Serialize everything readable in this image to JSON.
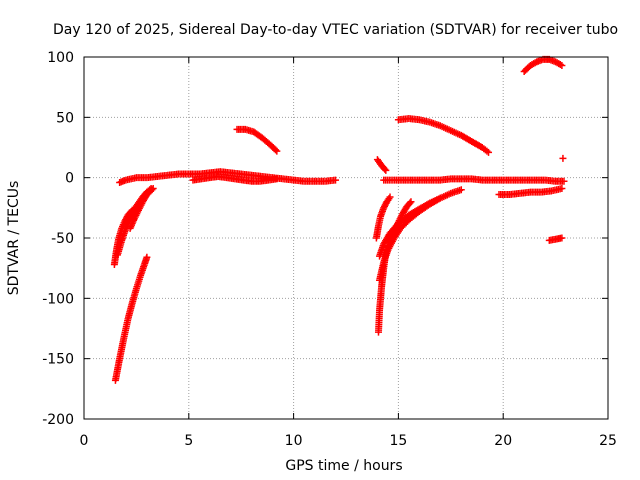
{
  "chart_data": {
    "type": "scatter",
    "title": "Day 120 of 2025, Sidereal Day-to-day VTEC variation (SDTVAR) for receiver tubo",
    "xlabel": "GPS time / hours",
    "ylabel": "SDTVAR / TECUs",
    "xlim": [
      0,
      25
    ],
    "ylim": [
      -200,
      100
    ],
    "x_ticks": [
      "0",
      "5",
      "10",
      "15",
      "20",
      "25"
    ],
    "y_ticks": [
      "100",
      "50",
      "0",
      "-50",
      "-100",
      "-150",
      "-200"
    ],
    "grid": true,
    "marker": "+",
    "color": "#ff0000",
    "series": [
      {
        "values": [
          [
            1.5,
            -168
          ],
          [
            1.7,
            -150
          ],
          [
            1.9,
            -133
          ],
          [
            2.1,
            -117
          ],
          [
            2.3,
            -104
          ],
          [
            2.5,
            -92
          ],
          [
            2.7,
            -81
          ],
          [
            2.9,
            -71
          ],
          [
            3.0,
            -66
          ]
        ]
      },
      {
        "values": [
          [
            1.45,
            -72
          ],
          [
            1.55,
            -60
          ],
          [
            1.65,
            -51
          ],
          [
            1.8,
            -42
          ],
          [
            1.95,
            -36
          ],
          [
            2.1,
            -31
          ],
          [
            2.3,
            -27
          ]
        ]
      },
      {
        "values": [
          [
            1.6,
            -64
          ],
          [
            1.8,
            -52
          ],
          [
            2.0,
            -42
          ],
          [
            2.2,
            -34
          ],
          [
            2.4,
            -28
          ],
          [
            2.6,
            -24
          ]
        ]
      },
      {
        "values": [
          [
            2.0,
            -38
          ],
          [
            2.2,
            -32
          ],
          [
            2.4,
            -26
          ],
          [
            2.6,
            -21
          ],
          [
            2.8,
            -16
          ],
          [
            3.0,
            -12
          ],
          [
            3.2,
            -9
          ]
        ]
      },
      {
        "values": [
          [
            2.2,
            -42
          ],
          [
            2.4,
            -34
          ],
          [
            2.6,
            -27
          ],
          [
            2.8,
            -20
          ],
          [
            3.0,
            -14
          ],
          [
            3.3,
            -9
          ]
        ]
      },
      {
        "values": [
          [
            1.7,
            -4
          ],
          [
            2.0,
            -2
          ],
          [
            2.5,
            0
          ],
          [
            3.0,
            0
          ],
          [
            3.5,
            1
          ],
          [
            4.0,
            2
          ],
          [
            4.5,
            3
          ],
          [
            5.0,
            3
          ],
          [
            5.5,
            3
          ],
          [
            6.0,
            4
          ],
          [
            6.5,
            5
          ],
          [
            7.0,
            4
          ],
          [
            7.5,
            3
          ],
          [
            8.0,
            2
          ],
          [
            8.5,
            1
          ],
          [
            9.0,
            0
          ],
          [
            9.5,
            -1
          ],
          [
            10.0,
            -2
          ],
          [
            10.5,
            -3
          ],
          [
            11.0,
            -3
          ],
          [
            11.5,
            -3
          ],
          [
            12.0,
            -2
          ]
        ]
      },
      {
        "values": [
          [
            5.2,
            -2
          ],
          [
            5.6,
            -1
          ],
          [
            6.0,
            0
          ],
          [
            6.4,
            1
          ],
          [
            6.8,
            0
          ],
          [
            7.2,
            -1
          ],
          [
            7.6,
            -2
          ],
          [
            8.0,
            -3
          ],
          [
            8.4,
            -3
          ],
          [
            8.8,
            -2
          ],
          [
            9.2,
            -1
          ]
        ]
      },
      {
        "values": [
          [
            7.3,
            40
          ],
          [
            7.7,
            40
          ],
          [
            8.1,
            38
          ],
          [
            8.5,
            33
          ],
          [
            8.9,
            27
          ],
          [
            9.2,
            22
          ]
        ]
      },
      {
        "values": [
          [
            14.0,
            15
          ],
          [
            14.2,
            10
          ],
          [
            14.4,
            6
          ]
        ]
      },
      {
        "values": [
          [
            14.3,
            -2
          ],
          [
            15.0,
            -2
          ],
          [
            15.5,
            -2
          ],
          [
            16.0,
            -2
          ],
          [
            16.5,
            -2
          ],
          [
            17.0,
            -2
          ],
          [
            17.5,
            -1
          ],
          [
            18.0,
            -1
          ],
          [
            18.5,
            -1
          ],
          [
            19.0,
            -2
          ],
          [
            19.5,
            -2
          ],
          [
            20.0,
            -2
          ],
          [
            20.5,
            -2
          ],
          [
            21.0,
            -2
          ],
          [
            21.5,
            -2
          ],
          [
            22.0,
            -2
          ],
          [
            22.5,
            -3
          ],
          [
            22.9,
            -3
          ]
        ]
      },
      {
        "values": [
          [
            15.0,
            48
          ],
          [
            15.5,
            49
          ],
          [
            16.0,
            48
          ],
          [
            16.5,
            46
          ],
          [
            17.0,
            43
          ],
          [
            17.5,
            39
          ],
          [
            18.0,
            35
          ],
          [
            18.5,
            30
          ],
          [
            19.0,
            25
          ],
          [
            19.3,
            21
          ]
        ]
      },
      {
        "values": [
          [
            14.05,
            -128
          ],
          [
            14.1,
            -110
          ],
          [
            14.2,
            -90
          ],
          [
            14.3,
            -75
          ],
          [
            14.4,
            -62
          ],
          [
            14.6,
            -52
          ],
          [
            14.8,
            -44
          ],
          [
            15.0,
            -37
          ],
          [
            15.2,
            -30
          ],
          [
            15.4,
            -24
          ],
          [
            15.6,
            -20
          ]
        ]
      },
      {
        "values": [
          [
            14.1,
            -85
          ],
          [
            14.3,
            -70
          ],
          [
            14.5,
            -60
          ],
          [
            14.8,
            -50
          ],
          [
            15.1,
            -42
          ],
          [
            15.5,
            -35
          ],
          [
            16.0,
            -28
          ],
          [
            16.5,
            -22
          ],
          [
            17.0,
            -17
          ],
          [
            17.5,
            -13
          ],
          [
            18.0,
            -10
          ]
        ]
      },
      {
        "values": [
          [
            13.95,
            -50
          ],
          [
            14.05,
            -40
          ],
          [
            14.15,
            -32
          ],
          [
            14.3,
            -25
          ],
          [
            14.45,
            -20
          ],
          [
            14.6,
            -16
          ]
        ]
      },
      {
        "values": [
          [
            14.1,
            -65
          ],
          [
            14.3,
            -55
          ],
          [
            14.6,
            -46
          ],
          [
            15.0,
            -38
          ],
          [
            15.5,
            -31
          ],
          [
            16.0,
            -26
          ],
          [
            16.5,
            -21
          ],
          [
            17.0,
            -17
          ]
        ]
      },
      {
        "values": [
          [
            19.8,
            -14
          ],
          [
            20.3,
            -14
          ],
          [
            20.8,
            -13
          ],
          [
            21.3,
            -12
          ],
          [
            21.8,
            -12
          ],
          [
            22.3,
            -11
          ],
          [
            22.8,
            -9
          ]
        ]
      },
      {
        "values": [
          [
            21.0,
            88
          ],
          [
            21.3,
            93
          ],
          [
            21.6,
            96
          ],
          [
            21.9,
            98
          ],
          [
            22.2,
            98
          ],
          [
            22.5,
            96
          ],
          [
            22.8,
            93
          ]
        ]
      },
      {
        "values": [
          [
            22.2,
            -52
          ],
          [
            22.5,
            -51
          ],
          [
            22.8,
            -50
          ]
        ]
      },
      {
        "values": [
          [
            22.85,
            16
          ]
        ]
      }
    ]
  }
}
